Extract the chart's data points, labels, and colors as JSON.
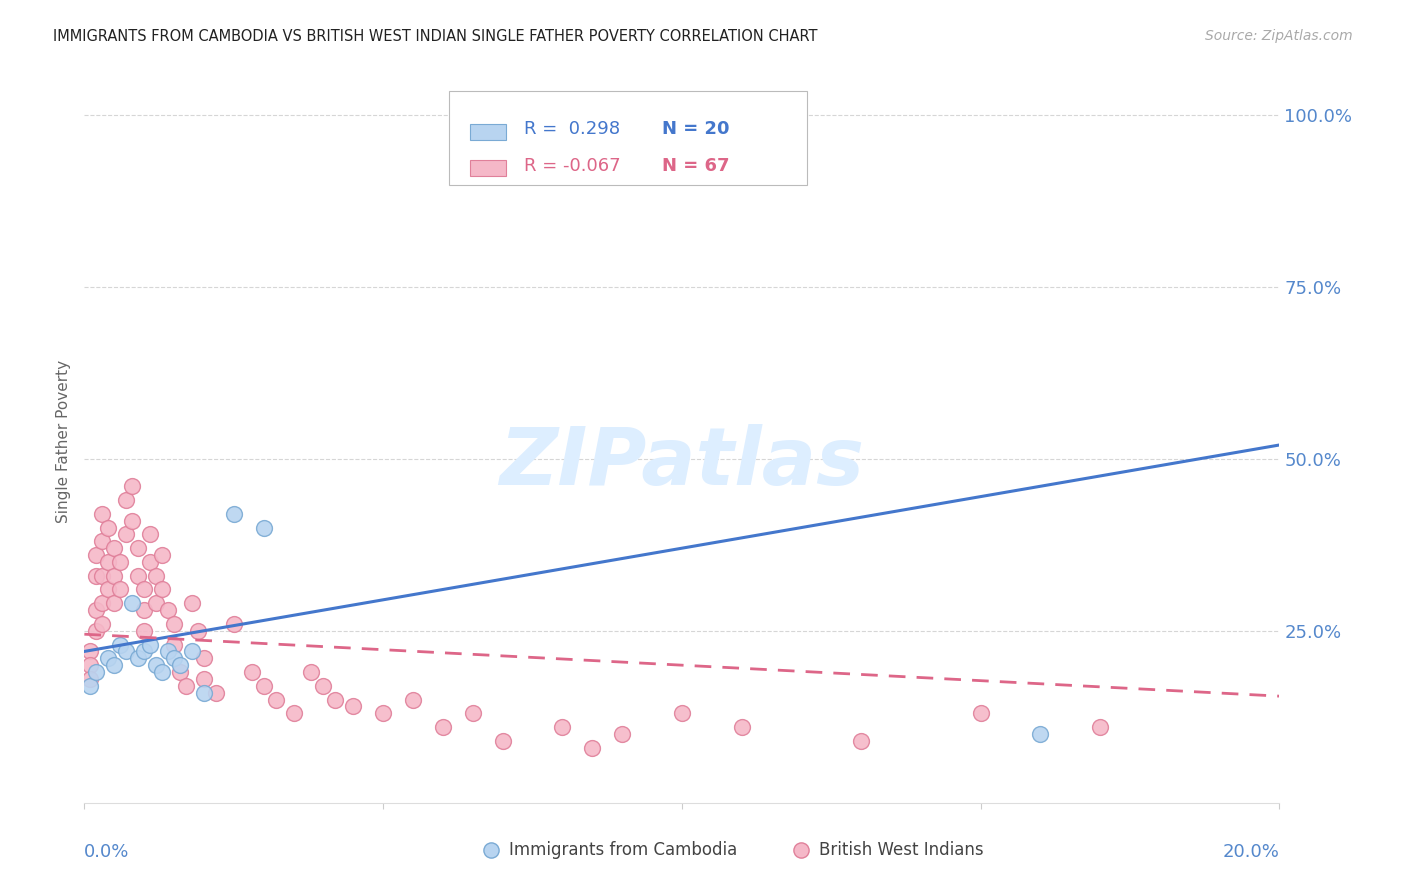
{
  "title": "IMMIGRANTS FROM CAMBODIA VS BRITISH WEST INDIAN SINGLE FATHER POVERTY CORRELATION CHART",
  "source": "Source: ZipAtlas.com",
  "ylabel": "Single Father Poverty",
  "ytick_labels": [
    "100.0%",
    "75.0%",
    "50.0%",
    "25.0%"
  ],
  "ytick_values": [
    1.0,
    0.75,
    0.5,
    0.25
  ],
  "xlim": [
    0.0,
    0.2
  ],
  "ylim": [
    0.0,
    1.05
  ],
  "background_color": "#ffffff",
  "grid_color": "#cccccc",
  "title_color": "#222222",
  "source_color": "#aaaaaa",
  "right_tick_color": "#5588cc",
  "watermark_text": "ZIPatlas",
  "watermark_color": "#ddeeff",
  "legend_R1": "R =  0.298",
  "legend_N1": "N = 20",
  "legend_R2": "R = -0.067",
  "legend_N2": "N = 67",
  "cambodia_color": "#b8d4f0",
  "cambodia_edge": "#7aaad4",
  "bwi_color": "#f5b8c8",
  "bwi_edge": "#e0809a",
  "trend_cambodia_color": "#4477cc",
  "trend_bwi_color": "#dd6688",
  "cambodia_x": [
    0.001,
    0.002,
    0.004,
    0.005,
    0.006,
    0.007,
    0.008,
    0.009,
    0.01,
    0.011,
    0.012,
    0.013,
    0.014,
    0.015,
    0.016,
    0.018,
    0.02,
    0.025,
    0.03,
    0.16
  ],
  "cambodia_y": [
    0.17,
    0.19,
    0.21,
    0.2,
    0.23,
    0.22,
    0.29,
    0.21,
    0.22,
    0.23,
    0.2,
    0.19,
    0.22,
    0.21,
    0.2,
    0.22,
    0.16,
    0.42,
    0.4,
    0.1
  ],
  "bwi_x": [
    0.001,
    0.001,
    0.001,
    0.002,
    0.002,
    0.002,
    0.002,
    0.003,
    0.003,
    0.003,
    0.003,
    0.003,
    0.004,
    0.004,
    0.004,
    0.005,
    0.005,
    0.005,
    0.006,
    0.006,
    0.007,
    0.007,
    0.008,
    0.008,
    0.009,
    0.009,
    0.01,
    0.01,
    0.01,
    0.011,
    0.011,
    0.012,
    0.012,
    0.013,
    0.013,
    0.014,
    0.015,
    0.015,
    0.016,
    0.017,
    0.018,
    0.019,
    0.02,
    0.02,
    0.022,
    0.025,
    0.028,
    0.03,
    0.032,
    0.035,
    0.038,
    0.04,
    0.042,
    0.045,
    0.05,
    0.055,
    0.06,
    0.065,
    0.07,
    0.08,
    0.085,
    0.09,
    0.1,
    0.11,
    0.13,
    0.15,
    0.17
  ],
  "bwi_y": [
    0.22,
    0.2,
    0.18,
    0.36,
    0.33,
    0.28,
    0.25,
    0.42,
    0.38,
    0.33,
    0.29,
    0.26,
    0.4,
    0.35,
    0.31,
    0.37,
    0.33,
    0.29,
    0.35,
    0.31,
    0.44,
    0.39,
    0.46,
    0.41,
    0.37,
    0.33,
    0.31,
    0.28,
    0.25,
    0.39,
    0.35,
    0.33,
    0.29,
    0.36,
    0.31,
    0.28,
    0.26,
    0.23,
    0.19,
    0.17,
    0.29,
    0.25,
    0.21,
    0.18,
    0.16,
    0.26,
    0.19,
    0.17,
    0.15,
    0.13,
    0.19,
    0.17,
    0.15,
    0.14,
    0.13,
    0.15,
    0.11,
    0.13,
    0.09,
    0.11,
    0.08,
    0.1,
    0.13,
    0.11,
    0.09,
    0.13,
    0.11
  ],
  "trend_cam_x0": 0.0,
  "trend_cam_x1": 0.2,
  "trend_cam_y0": 0.22,
  "trend_cam_y1": 0.52,
  "trend_bwi_x0": 0.0,
  "trend_bwi_x1": 0.2,
  "trend_bwi_y0": 0.245,
  "trend_bwi_y1": 0.155
}
